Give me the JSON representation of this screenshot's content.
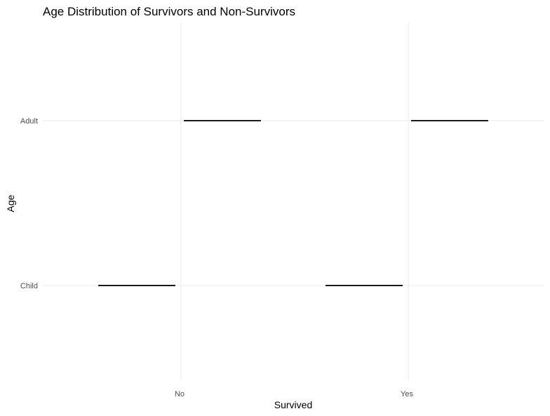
{
  "chart_data": {
    "type": "crossbar",
    "title": "Age Distribution of Survivors and Non-Survivors",
    "xlabel": "Survived",
    "ylabel": "Age",
    "x_categories": [
      "No",
      "Yes"
    ],
    "y_categories": [
      "Child",
      "Adult"
    ],
    "grid": true,
    "legend": "none",
    "colors": {
      "bar": "#1a1a1a",
      "grid": "#ebebeb",
      "tick_text": "#4d4d4d"
    },
    "marks": [
      {
        "x": "No",
        "side": "left",
        "y": "Child"
      },
      {
        "x": "No",
        "side": "right",
        "y": "Adult"
      },
      {
        "x": "Yes",
        "side": "left",
        "y": "Child"
      },
      {
        "x": "Yes",
        "side": "right",
        "y": "Adult"
      }
    ]
  }
}
